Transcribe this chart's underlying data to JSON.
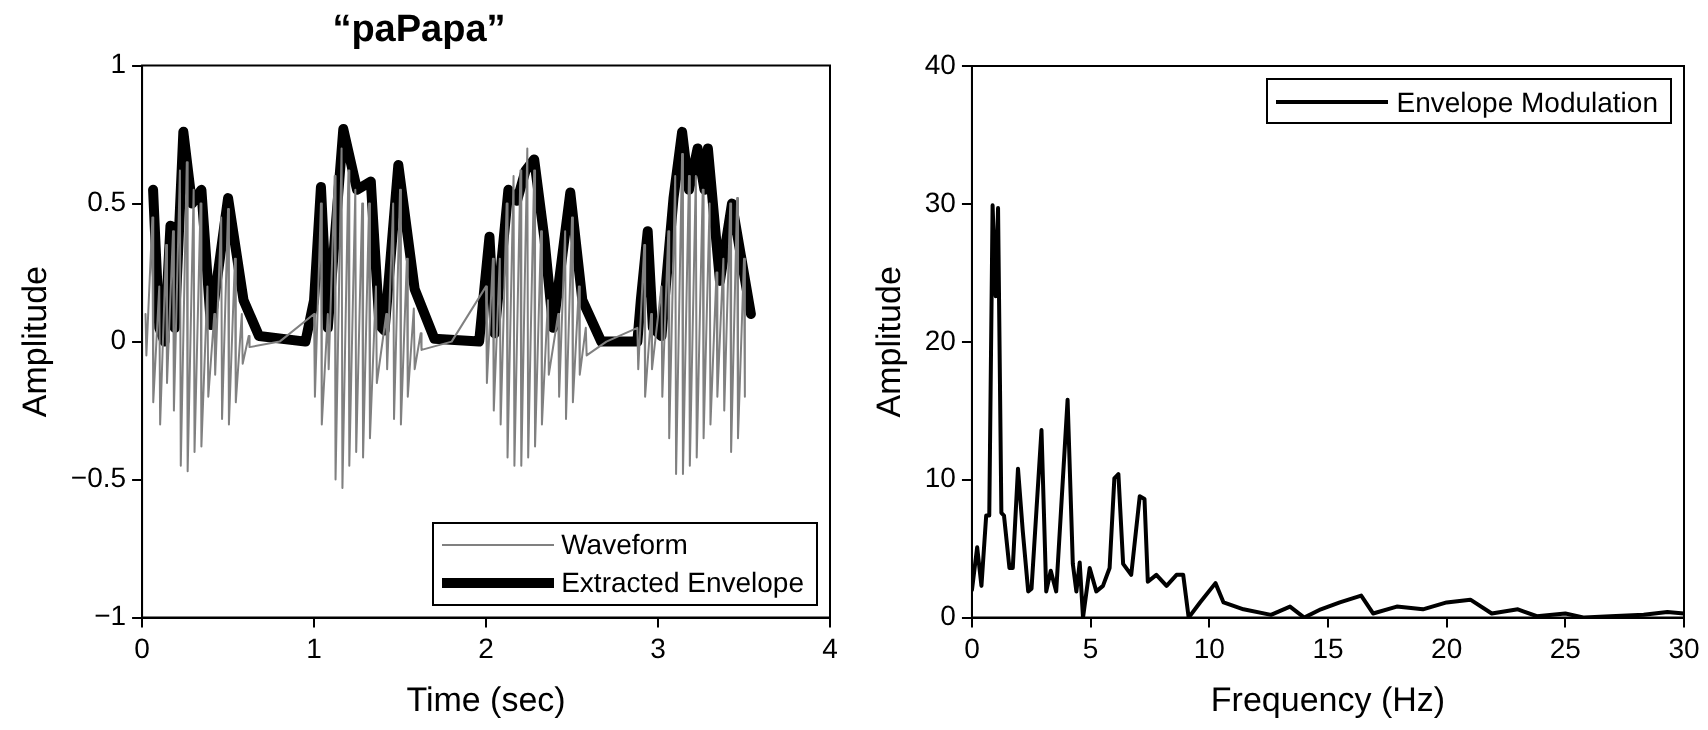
{
  "chart_data": [
    {
      "type": "line",
      "title": "“paPapa”",
      "xlabel": "Time (sec)",
      "ylabel": "Amplitude",
      "xlim": [
        0,
        4
      ],
      "xticks": [
        0,
        1,
        2,
        3,
        4
      ],
      "ylim": [
        -1,
        1
      ],
      "yticks": [
        {
          "value": -1,
          "label": "−1"
        },
        {
          "value": -0.5,
          "label": "−0.5"
        },
        0,
        0.5,
        1
      ],
      "grid": false,
      "legend": "bottom right",
      "marker": "none",
      "series": [
        {
          "name": "Waveform",
          "color": "#808080",
          "x": [
            0.02,
            0.025,
            0.06,
            0.065,
            0.1,
            0.105,
            0.14,
            0.145,
            0.18,
            0.185,
            0.22,
            0.225,
            0.26,
            0.265,
            0.3,
            0.305,
            0.34,
            0.345,
            0.38,
            0.385,
            0.42,
            0.425,
            0.46,
            0.465,
            0.5,
            0.505,
            0.54,
            0.545,
            0.58,
            0.585,
            0.62,
            0.625,
            0.8,
            1.0,
            1.005,
            1.04,
            1.045,
            1.08,
            1.085,
            1.12,
            1.125,
            1.16,
            1.165,
            1.2,
            1.205,
            1.24,
            1.245,
            1.28,
            1.285,
            1.32,
            1.325,
            1.36,
            1.365,
            1.42,
            1.425,
            1.46,
            1.465,
            1.5,
            1.505,
            1.54,
            1.545,
            1.58,
            1.585,
            1.62,
            1.625,
            1.8,
            2.0,
            2.005,
            2.04,
            2.045,
            2.08,
            2.085,
            2.12,
            2.125,
            2.16,
            2.165,
            2.2,
            2.205,
            2.24,
            2.245,
            2.28,
            2.285,
            2.32,
            2.325,
            2.36,
            2.365,
            2.42,
            2.425,
            2.46,
            2.465,
            2.5,
            2.505,
            2.54,
            2.545,
            2.58,
            2.585,
            2.7,
            2.88,
            2.885,
            2.92,
            2.925,
            2.96,
            2.965,
            3.02,
            3.025,
            3.06,
            3.065,
            3.1,
            3.105,
            3.14,
            3.145,
            3.18,
            3.185,
            3.22,
            3.225,
            3.26,
            3.265,
            3.3,
            3.305,
            3.34,
            3.345,
            3.38,
            3.385,
            3.42,
            3.425,
            3.46,
            3.465,
            3.5,
            3.505
          ],
          "values": [
            0.1,
            -0.05,
            0.45,
            -0.22,
            0.2,
            -0.3,
            0.35,
            -0.15,
            0.4,
            -0.25,
            0.62,
            -0.45,
            0.65,
            -0.47,
            0.55,
            -0.4,
            0.5,
            -0.38,
            0.2,
            -0.2,
            0.1,
            -0.12,
            0.45,
            -0.28,
            0.48,
            -0.3,
            0.3,
            -0.22,
            0.1,
            -0.08,
            0.02,
            -0.02,
            0,
            0.1,
            -0.2,
            0.5,
            -0.3,
            0.1,
            -0.1,
            0.6,
            -0.5,
            0.7,
            -0.53,
            0.62,
            -0.45,
            0.55,
            -0.4,
            0.5,
            -0.42,
            0.5,
            -0.35,
            0.2,
            -0.15,
            0.1,
            -0.1,
            0.5,
            -0.28,
            0.55,
            -0.3,
            0.3,
            -0.2,
            0.12,
            -0.1,
            0.03,
            -0.03,
            0,
            0.2,
            -0.15,
            0.3,
            -0.25,
            0.3,
            -0.3,
            0.5,
            -0.42,
            0.6,
            -0.45,
            0.62,
            -0.45,
            0.7,
            -0.42,
            0.62,
            -0.38,
            0.4,
            -0.3,
            0.15,
            -0.12,
            0.1,
            -0.2,
            0.4,
            -0.28,
            0.45,
            -0.22,
            0.2,
            -0.12,
            0.05,
            -0.05,
            0,
            0.05,
            -0.1,
            0.35,
            -0.2,
            0.1,
            -0.1,
            0.2,
            -0.2,
            0.4,
            -0.35,
            0.6,
            -0.48,
            0.68,
            -0.48,
            0.6,
            -0.45,
            0.6,
            -0.42,
            0.55,
            -0.35,
            0.5,
            -0.3,
            0.25,
            -0.2,
            0.3,
            -0.25,
            0.5,
            -0.4,
            0.52,
            -0.35,
            0.3,
            -0.2
          ]
        },
        {
          "name": "Extracted Envelope",
          "color": "#000000",
          "x": [
            0.064,
            0.1,
            0.13,
            0.165,
            0.19,
            0.24,
            0.29,
            0.345,
            0.4,
            0.5,
            0.59,
            0.68,
            0.95,
            1.0,
            1.04,
            1.08,
            1.17,
            1.25,
            1.33,
            1.38,
            1.41,
            1.49,
            1.585,
            1.7,
            1.96,
            2.02,
            2.05,
            2.13,
            2.18,
            2.23,
            2.28,
            2.34,
            2.39,
            2.49,
            2.56,
            2.67,
            2.88,
            2.9,
            2.94,
            2.97,
            3.02,
            3.09,
            3.14,
            3.18,
            3.23,
            3.27,
            3.29,
            3.36,
            3.43,
            3.54
          ],
          "values": [
            0.55,
            0.05,
            0.0,
            0.42,
            0.05,
            0.76,
            0.5,
            0.55,
            0.06,
            0.52,
            0.15,
            0.02,
            0.0,
            0.15,
            0.56,
            0.05,
            0.77,
            0.55,
            0.58,
            0.06,
            0.04,
            0.64,
            0.19,
            0.01,
            0.0,
            0.38,
            0.03,
            0.55,
            0.51,
            0.62,
            0.66,
            0.37,
            0.05,
            0.54,
            0.15,
            0.0,
            0.0,
            0.15,
            0.4,
            0.05,
            0.02,
            0.52,
            0.76,
            0.55,
            0.7,
            0.55,
            0.7,
            0.22,
            0.5,
            0.1
          ]
        }
      ]
    },
    {
      "type": "line",
      "xlabel": "Frequency (Hz)",
      "ylabel": "Amplitude",
      "xlim": [
        0,
        30
      ],
      "xticks": [
        0,
        5,
        10,
        15,
        20,
        25,
        30
      ],
      "ylim": [
        0,
        40
      ],
      "yticks": [
        0,
        10,
        20,
        30,
        40
      ],
      "grid": false,
      "legend": "top right",
      "marker": "none",
      "series": [
        {
          "name": "Envelope Modulation",
          "color": "#000000",
          "x": [
            0,
            0.22,
            0.4,
            0.6,
            0.73,
            0.87,
            1.0,
            1.1,
            1.24,
            1.35,
            1.58,
            1.72,
            1.94,
            2.14,
            2.37,
            2.51,
            2.93,
            3.13,
            3.32,
            3.55,
            4.03,
            4.25,
            4.4,
            4.54,
            4.68,
            4.96,
            5.24,
            5.52,
            5.8,
            6.0,
            6.17,
            6.37,
            6.71,
            7.07,
            7.27,
            7.41,
            7.77,
            8.2,
            8.62,
            8.9,
            9.13,
            9.61,
            10.26,
            10.6,
            11.44,
            12.6,
            13.4,
            14.0,
            14.7,
            15.5,
            16.4,
            16.9,
            17.9,
            19.0,
            20.0,
            21.0,
            21.9,
            23.0,
            23.8,
            25.0,
            25.8,
            26.9,
            28.3,
            29.3,
            30
          ],
          "values": [
            2,
            5.1,
            2.3,
            7.4,
            7.4,
            29.9,
            23.3,
            29.7,
            7.6,
            7.4,
            3.6,
            3.6,
            10.8,
            6.3,
            1.9,
            2.1,
            13.6,
            1.9,
            3.4,
            1.9,
            15.8,
            3.9,
            1.9,
            4,
            0,
            3.6,
            1.9,
            2.3,
            3.6,
            10.1,
            10.4,
            3.9,
            3.1,
            8.8,
            8.6,
            2.6,
            3.1,
            2.3,
            3.1,
            3.1,
            0,
            1.1,
            2.5,
            1.1,
            0.6,
            0.2,
            0.8,
            0,
            0.6,
            1.1,
            1.6,
            0.3,
            0.8,
            0.6,
            1.1,
            1.3,
            0.3,
            0.6,
            0.1,
            0.3,
            0,
            0.1,
            0.2,
            0.4,
            0.3
          ]
        }
      ]
    }
  ]
}
